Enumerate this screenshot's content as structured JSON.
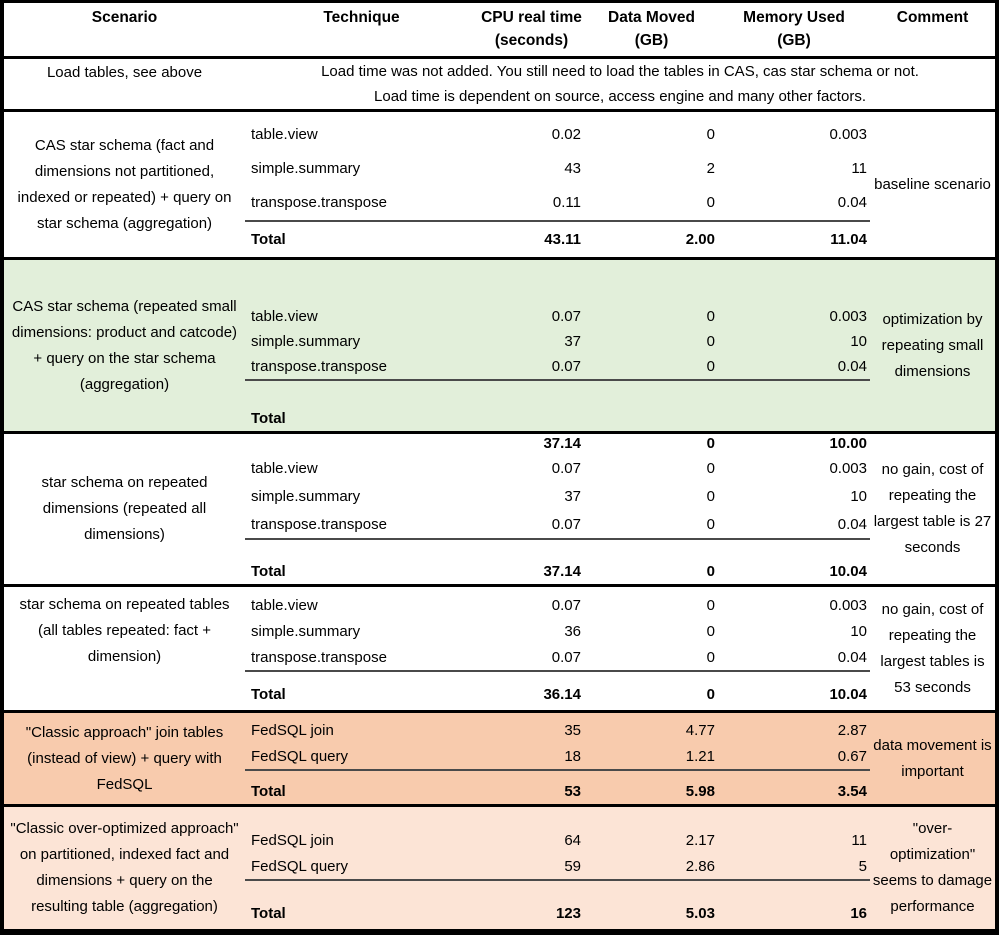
{
  "colors": {
    "white": "#ffffff",
    "green": "#e2efda",
    "orange_dark": "#f8cbad",
    "orange_light": "#fce4d6",
    "border": "#000000",
    "sum_line": "#4a4a4a"
  },
  "header": {
    "columns": [
      {
        "label": "Scenario",
        "sub": ""
      },
      {
        "label": "Technique",
        "sub": ""
      },
      {
        "label": "CPU real time",
        "sub": "(seconds)"
      },
      {
        "label": "Data Moved",
        "sub": "(GB)"
      },
      {
        "label": "Memory Used",
        "sub": "(GB)"
      },
      {
        "label": "Comment",
        "sub": ""
      }
    ]
  },
  "load_row": {
    "scenario": "Load tables, see above",
    "lines": [
      "Load time was not added. You still need to load the tables in CAS, cas star schema or not.",
      "Load time is dependent on source, access engine and many other factors."
    ]
  },
  "sections": [
    {
      "id": "a",
      "bg": "white",
      "scenario": "CAS star schema (fact and dimensions not partitioned, indexed or repeated) + query on star schema (aggregation)",
      "rows": [
        {
          "technique": "table.view",
          "cpu": "0.02",
          "data_moved": "0",
          "memory": "0.003"
        },
        {
          "technique": "simple.summary",
          "cpu": "43",
          "data_moved": "2",
          "memory": "11"
        },
        {
          "technique": "transpose.transpose",
          "cpu": "0.11",
          "data_moved": "0",
          "memory": "0.04"
        }
      ],
      "total": {
        "label": "Total",
        "cpu": "43.11",
        "data_moved": "2.00",
        "memory": "11.04"
      },
      "total_split": false,
      "comment": "baseline scenario"
    },
    {
      "id": "b",
      "bg": "green",
      "scenario": "CAS star schema (repeated small dimensions: product and catcode) + query on the star schema (aggregation)",
      "rows": [
        {
          "technique": "table.view",
          "cpu": "0.07",
          "data_moved": "0",
          "memory": "0.003"
        },
        {
          "technique": "simple.summary",
          "cpu": "37",
          "data_moved": "0",
          "memory": "10"
        },
        {
          "technique": "transpose.transpose",
          "cpu": "0.07",
          "data_moved": "0",
          "memory": "0.04"
        }
      ],
      "total": {
        "label": "Total",
        "cpu": "37.14",
        "data_moved": "0",
        "memory": "10.00"
      },
      "total_split": true,
      "comment": "optimization by repeating small dimensions"
    },
    {
      "id": "c",
      "bg": "white",
      "scenario": "star schema on repeated dimensions (repeated all dimensions)",
      "rows": [
        {
          "technique": "table.view",
          "cpu": "0.07",
          "data_moved": "0",
          "memory": "0.003"
        },
        {
          "technique": "simple.summary",
          "cpu": "37",
          "data_moved": "0",
          "memory": "10"
        },
        {
          "technique": "transpose.transpose",
          "cpu": "0.07",
          "data_moved": "0",
          "memory": "0.04"
        }
      ],
      "total": {
        "label": "Total",
        "cpu": "37.14",
        "data_moved": "0",
        "memory": "10.04"
      },
      "total_split": false,
      "comment": "no gain, cost of repeating the largest table is 27 seconds"
    },
    {
      "id": "d",
      "bg": "white",
      "scenario": "star schema on repeated tables (all tables repeated: fact + dimension)",
      "rows": [
        {
          "technique": "table.view",
          "cpu": "0.07",
          "data_moved": "0",
          "memory": "0.003"
        },
        {
          "technique": "simple.summary",
          "cpu": "36",
          "data_moved": "0",
          "memory": "10"
        },
        {
          "technique": "transpose.transpose",
          "cpu": "0.07",
          "data_moved": "0",
          "memory": "0.04"
        }
      ],
      "total": {
        "label": "Total",
        "cpu": "36.14",
        "data_moved": "0",
        "memory": "10.04"
      },
      "total_split": false,
      "comment": "no gain, cost of repeating the largest tables is 53 seconds"
    },
    {
      "id": "e",
      "bg": "orange_dark",
      "scenario": "\"Classic approach\" join tables (instead of view) + query with FedSQL",
      "rows": [
        {
          "technique": "FedSQL join",
          "cpu": "35",
          "data_moved": "4.77",
          "memory": "2.87"
        },
        {
          "technique": "FedSQL query",
          "cpu": "18",
          "data_moved": "1.21",
          "memory": "0.67"
        }
      ],
      "total": {
        "label": "Total",
        "cpu": "53",
        "data_moved": "5.98",
        "memory": "3.54"
      },
      "total_split": false,
      "comment": "data movement is important"
    },
    {
      "id": "f",
      "bg": "orange_light",
      "scenario": "\"Classic over-optimized approach\" on partitioned, indexed fact and dimensions + query on the resulting table (aggregation)",
      "rows": [
        {
          "technique": "FedSQL join",
          "cpu": "64",
          "data_moved": "2.17",
          "memory": "11"
        },
        {
          "technique": "FedSQL query",
          "cpu": "59",
          "data_moved": "2.86",
          "memory": "5"
        }
      ],
      "total": {
        "label": "Total",
        "cpu": "123",
        "data_moved": "5.03",
        "memory": "16"
      },
      "total_split": false,
      "comment": "\"over-optimization\" seems to damage performance"
    }
  ]
}
